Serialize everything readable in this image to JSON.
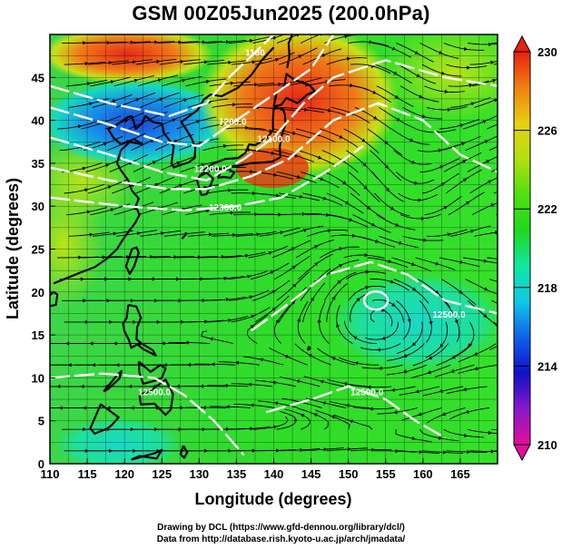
{
  "title": "GSM 00Z05Jun2025 (200.0hPa)",
  "chart_data": {
    "type": "map",
    "xlabel": "Longitude (degrees)",
    "ylabel": "Latitude (degrees)",
    "xlim": [
      110,
      170
    ],
    "ylim": [
      0,
      50
    ],
    "x_ticks": [
      110,
      115,
      120,
      125,
      130,
      135,
      140,
      145,
      150,
      155,
      160,
      165
    ],
    "y_ticks": [
      0,
      5,
      10,
      15,
      20,
      25,
      30,
      35,
      40,
      45
    ],
    "colorbar": {
      "min": 210,
      "max": 230,
      "tick_labels": [
        210,
        214,
        218,
        222,
        226,
        230
      ],
      "colors": [
        "#e0109a",
        "#8a18c8",
        "#1010c8",
        "#1060e8",
        "#10c8e8",
        "#10e8a0",
        "#20d820",
        "#50e010",
        "#b0e010",
        "#e8d010",
        "#f08010",
        "#e82010"
      ]
    },
    "contour_labels": [
      {
        "text": "1180",
        "lon": 137.5,
        "lat": 47.5
      },
      {
        "text": "1200.0",
        "lon": 134.5,
        "lat": 39.5
      },
      {
        "text": "12100.0",
        "lon": 140,
        "lat": 37.5
      },
      {
        "text": "12200.0",
        "lon": 131.5,
        "lat": 34
      },
      {
        "text": "12300.0",
        "lon": 133.5,
        "lat": 29.5
      },
      {
        "text": "12500.0",
        "lon": 124,
        "lat": 8
      },
      {
        "text": "12500.0",
        "lon": 152.5,
        "lat": 8
      },
      {
        "text": "12500.0",
        "lon": 163.5,
        "lat": 17
      }
    ]
  },
  "credits": {
    "line1": "Drawing by DCL (https://www.gfd-dennou.org/library/dcl/)",
    "line2": "Data from http://database.rish.kyoto-u.ac.jp/arch/jmadata/"
  }
}
